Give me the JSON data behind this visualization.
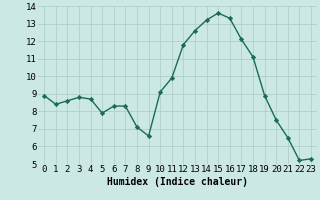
{
  "x": [
    0,
    1,
    2,
    3,
    4,
    5,
    6,
    7,
    8,
    9,
    10,
    11,
    12,
    13,
    14,
    15,
    16,
    17,
    18,
    19,
    20,
    21,
    22,
    23
  ],
  "y": [
    8.9,
    8.4,
    8.6,
    8.8,
    8.7,
    7.9,
    8.3,
    8.3,
    7.1,
    6.6,
    9.1,
    9.9,
    11.8,
    12.6,
    13.2,
    13.6,
    13.3,
    12.1,
    11.1,
    8.9,
    7.5,
    6.5,
    5.2,
    5.3
  ],
  "xlabel": "Humidex (Indice chaleur)",
  "ylim": [
    5,
    14
  ],
  "xlim_min": -0.5,
  "xlim_max": 23.5,
  "yticks": [
    5,
    6,
    7,
    8,
    9,
    10,
    11,
    12,
    13,
    14
  ],
  "xticks": [
    0,
    1,
    2,
    3,
    4,
    5,
    6,
    7,
    8,
    9,
    10,
    11,
    12,
    13,
    14,
    15,
    16,
    17,
    18,
    19,
    20,
    21,
    22,
    23
  ],
  "line_color": "#1a6b5a",
  "marker_color": "#1a6b5a",
  "bg_color": "#cce8e4",
  "grid_color": "#b0ceca",
  "xlabel_fontsize": 7,
  "tick_fontsize": 6.5,
  "linewidth": 1.0,
  "markersize": 2.2
}
